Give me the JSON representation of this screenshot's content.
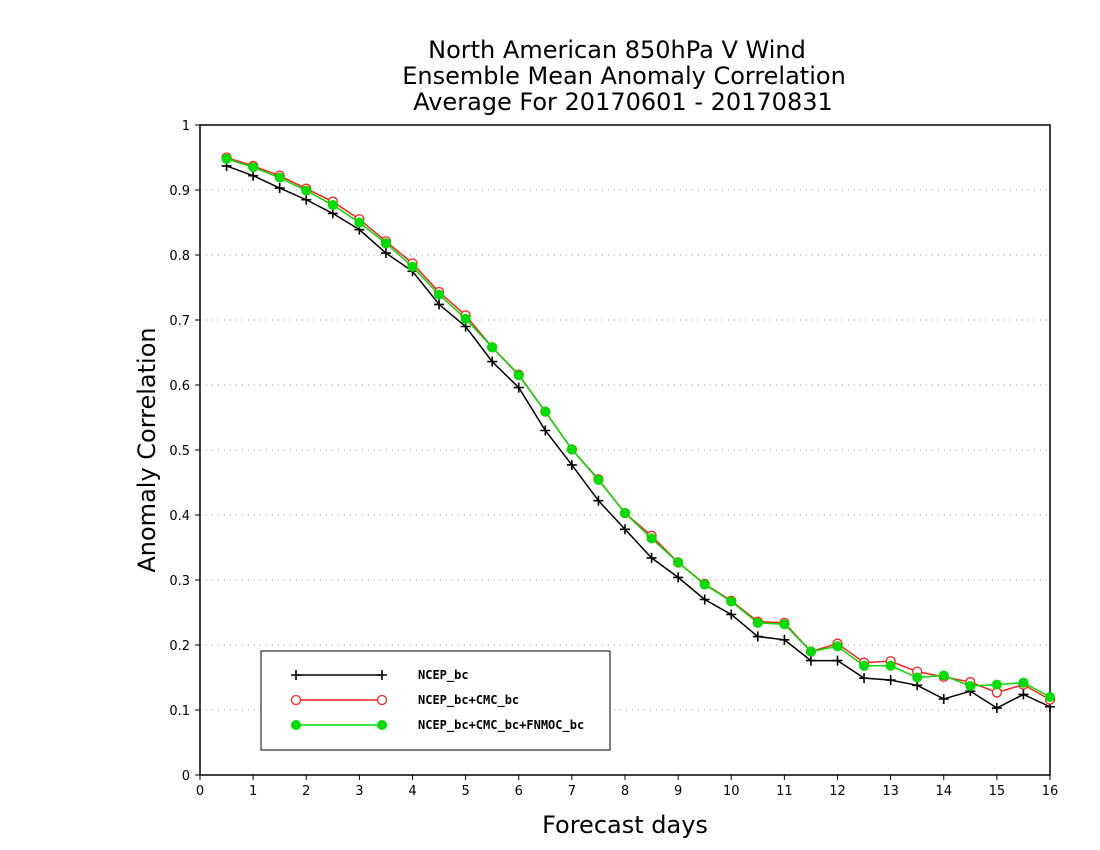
{
  "chart_data": {
    "type": "line",
    "title": [
      "North American 850hPa V Wind",
      "Ensemble Mean Anomaly Correlation",
      "Average For 20170601 - 20170831"
    ],
    "xlabel": "Forecast days",
    "ylabel": "Anomaly Correlation",
    "xlim": [
      0,
      16
    ],
    "ylim": [
      0,
      1
    ],
    "xticks": [
      0,
      1,
      2,
      3,
      4,
      5,
      6,
      7,
      8,
      9,
      10,
      11,
      12,
      13,
      14,
      15,
      16
    ],
    "yticks": [
      0,
      0.1,
      0.2,
      0.3,
      0.4,
      0.5,
      0.6,
      0.7,
      0.8,
      0.9,
      1
    ],
    "ytick_labels": [
      "0",
      "0.1",
      "0.2",
      "0.3",
      "0.4",
      "0.5",
      "0.6",
      "0.7",
      "0.8",
      "0.9",
      "1"
    ],
    "grid": "horizontal dotted",
    "legend_position": "bottom-left",
    "x": [
      0.5,
      1,
      1.5,
      2,
      2.5,
      3,
      3.5,
      4,
      4.5,
      5,
      5.5,
      6,
      6.5,
      7,
      7.5,
      8,
      8.5,
      9,
      9.5,
      10,
      10.5,
      11,
      11.5,
      12,
      12.5,
      13,
      13.5,
      14,
      14.5,
      15,
      15.5,
      16
    ],
    "series": [
      {
        "name": "NCEP_bc",
        "color": "#000000",
        "marker": "plus",
        "values": [
          0.937,
          0.922,
          0.903,
          0.885,
          0.864,
          0.839,
          0.803,
          0.775,
          0.724,
          0.69,
          0.636,
          0.596,
          0.53,
          0.477,
          0.422,
          0.378,
          0.334,
          0.304,
          0.27,
          0.247,
          0.213,
          0.208,
          0.176,
          0.176,
          0.149,
          0.146,
          0.138,
          0.117,
          0.129,
          0.103,
          0.124,
          0.105
        ]
      },
      {
        "name": "NCEP_bc+CMC_bc",
        "color": "#ff2020",
        "marker": "open-circle",
        "values": [
          0.95,
          0.937,
          0.922,
          0.902,
          0.882,
          0.855,
          0.821,
          0.787,
          0.743,
          0.707,
          0.658,
          0.616,
          0.559,
          0.501,
          0.455,
          0.403,
          0.368,
          0.327,
          0.294,
          0.268,
          0.236,
          0.234,
          0.19,
          0.202,
          0.173,
          0.175,
          0.159,
          0.151,
          0.143,
          0.127,
          0.139,
          0.116
        ]
      },
      {
        "name": "NCEP_bc+CMC_bc+FNMOC_bc",
        "color": "#00dd00",
        "marker": "filled-circle",
        "values": [
          0.948,
          0.935,
          0.919,
          0.899,
          0.877,
          0.85,
          0.818,
          0.782,
          0.739,
          0.702,
          0.658,
          0.615,
          0.559,
          0.501,
          0.454,
          0.403,
          0.364,
          0.327,
          0.293,
          0.267,
          0.234,
          0.232,
          0.19,
          0.198,
          0.168,
          0.168,
          0.15,
          0.153,
          0.137,
          0.139,
          0.142,
          0.12
        ]
      }
    ]
  }
}
